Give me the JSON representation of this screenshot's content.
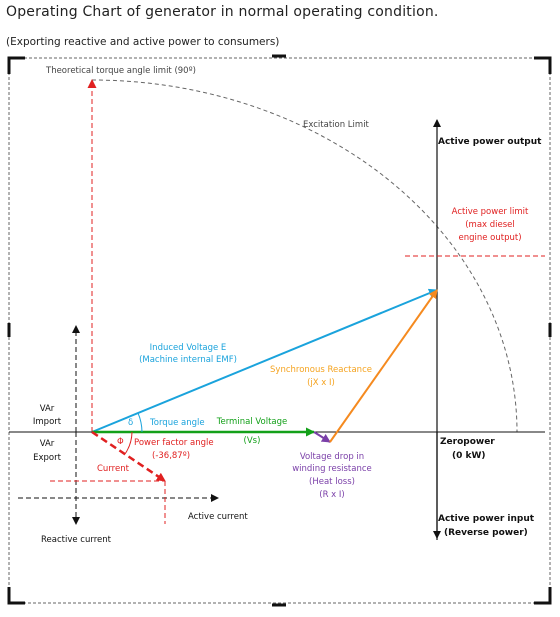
{
  "header": {
    "title": "Operating Chart of generator in normal operating condition.",
    "subtitle": "(Exporting reactive and active power to consumers)"
  },
  "diagram": {
    "theoretical_limit": "Theoretical torque angle limit (90º)",
    "excitation_limit": "Excitation Limit",
    "active_power_output": "Active power output",
    "active_power_limit": [
      "Active power limit",
      "(max diesel",
      "engine output)"
    ],
    "induced_voltage": [
      "Induced Voltage  E",
      "(Machine internal EMF)"
    ],
    "synchronous_reactance": [
      "Synchronous Reactance",
      "(jX x I)"
    ],
    "var_import": [
      "VAr",
      "Import"
    ],
    "var_export": [
      "VAr",
      "Export"
    ],
    "delta": "δ",
    "torque_angle": "Torque angle",
    "terminal_voltage": [
      "Terminal Voltage",
      "(Vs)"
    ],
    "phi": "Φ",
    "power_factor_angle": [
      "Power factor angle",
      "(-36,87º)"
    ],
    "current": "Current",
    "voltage_drop": [
      "Voltage drop in",
      "winding resistance",
      "(Heat loss)",
      "(R x I)"
    ],
    "zero_power": [
      "Zeropower",
      "(0 kW)"
    ],
    "active_current": "Active current",
    "reactive_current": "Reactive current",
    "active_power_input": [
      "Active power input",
      "(Reverse power)"
    ]
  },
  "colors": {
    "blue": "#1aa3dc",
    "green": "#13a019",
    "red": "#e02020",
    "orange": "#f58a1f",
    "purple": "#7a3fa8",
    "black": "#111111",
    "grey": "#666666"
  }
}
